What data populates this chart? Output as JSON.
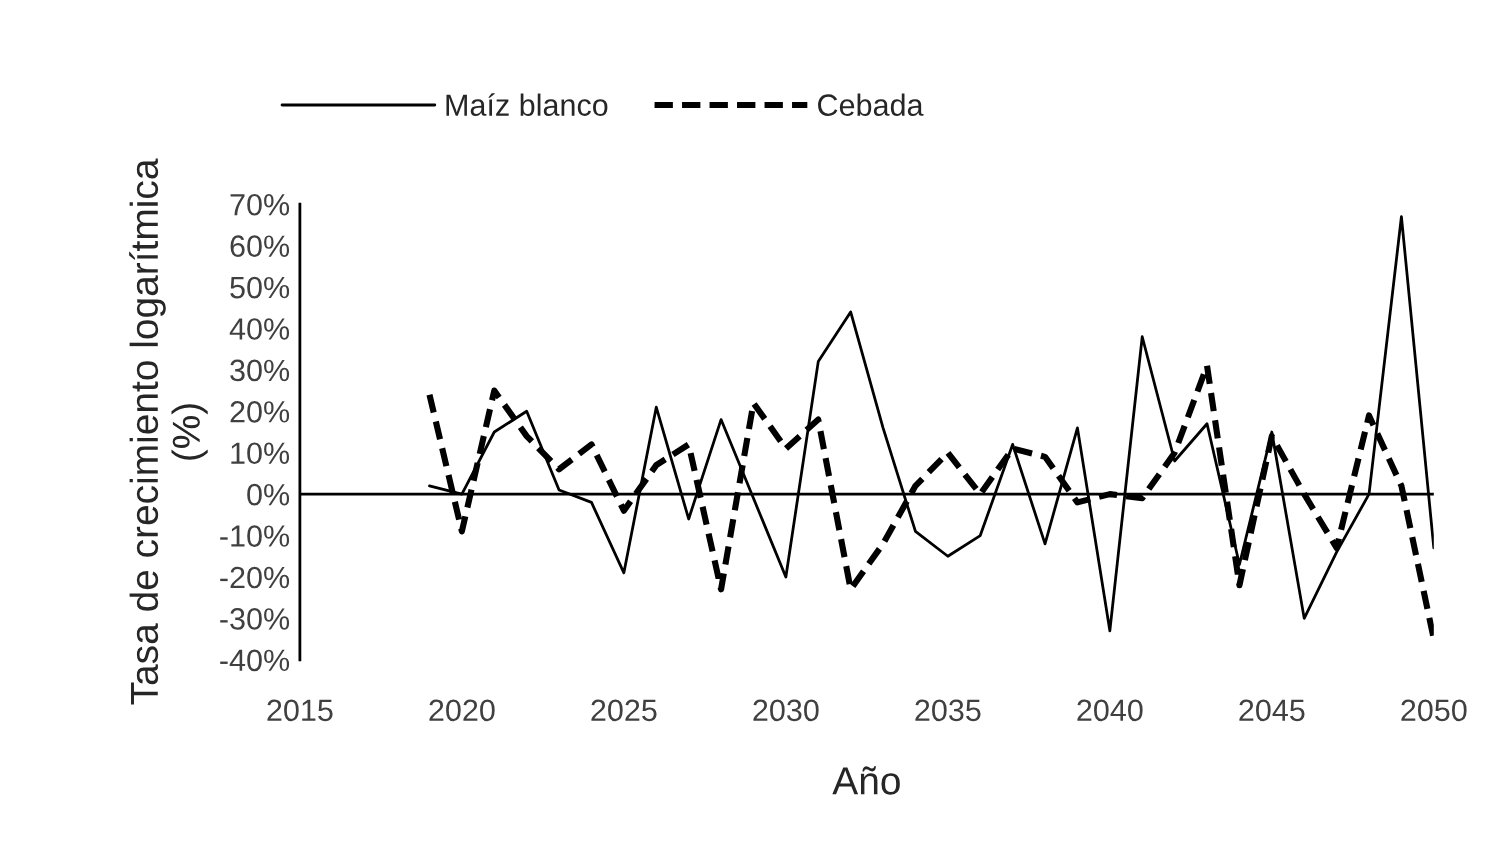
{
  "chart_data": {
    "type": "line",
    "xlabel": "Año",
    "ylabel": "Tasa de crecimiento logarítmica\n(%)",
    "x": [
      2019,
      2020,
      2021,
      2022,
      2023,
      2024,
      2025,
      2026,
      2027,
      2028,
      2029,
      2030,
      2031,
      2032,
      2033,
      2034,
      2035,
      2036,
      2037,
      2038,
      2039,
      2040,
      2041,
      2042,
      2043,
      2044,
      2045,
      2046,
      2047,
      2048,
      2049,
      2050
    ],
    "series": [
      {
        "name": "Maíz blanco",
        "color": "#000000",
        "line_style": "solid",
        "values": [
          2,
          0,
          15,
          20,
          1,
          -2,
          -19,
          21,
          -6,
          18,
          -1,
          -20,
          32,
          44,
          16,
          -9,
          -15,
          -10,
          12,
          -12,
          16,
          -33,
          38,
          8,
          17,
          -17,
          15,
          -30,
          -14,
          0,
          67,
          -13
        ]
      },
      {
        "name": "Cebada",
        "color": "#000000",
        "line_style": "dashed",
        "values": [
          24,
          -9,
          25,
          14,
          6,
          12,
          -4,
          7,
          12,
          -23,
          22,
          11,
          18,
          -23,
          -12,
          2,
          10,
          0,
          11,
          9,
          -2,
          0,
          -1,
          10,
          31,
          -22,
          14,
          0,
          -13,
          19,
          2,
          -35
        ]
      }
    ],
    "xlim": [
      2015,
      2050
    ],
    "xticks": [
      2015,
      2020,
      2025,
      2030,
      2035,
      2040,
      2045,
      2050
    ],
    "ylim": [
      -40,
      70
    ],
    "yticks": [
      {
        "value": -40,
        "label": "-40%"
      },
      {
        "value": -30,
        "label": "-30%"
      },
      {
        "value": -20,
        "label": "-20%"
      },
      {
        "value": -10,
        "label": "-10%"
      },
      {
        "value": 0,
        "label": "0%"
      },
      {
        "value": 10,
        "label": "10%"
      },
      {
        "value": 20,
        "label": "20%"
      },
      {
        "value": 30,
        "label": "30%"
      },
      {
        "value": 40,
        "label": "40%"
      },
      {
        "value": 50,
        "label": "50%"
      },
      {
        "value": 60,
        "label": "60%"
      },
      {
        "value": 70,
        "label": "70%"
      }
    ],
    "ref_lines": [
      {
        "axis": "y",
        "value": 0,
        "color": "#000000",
        "line_style": "solid"
      }
    ],
    "grid": false,
    "legend": "top left",
    "marker": "none"
  }
}
